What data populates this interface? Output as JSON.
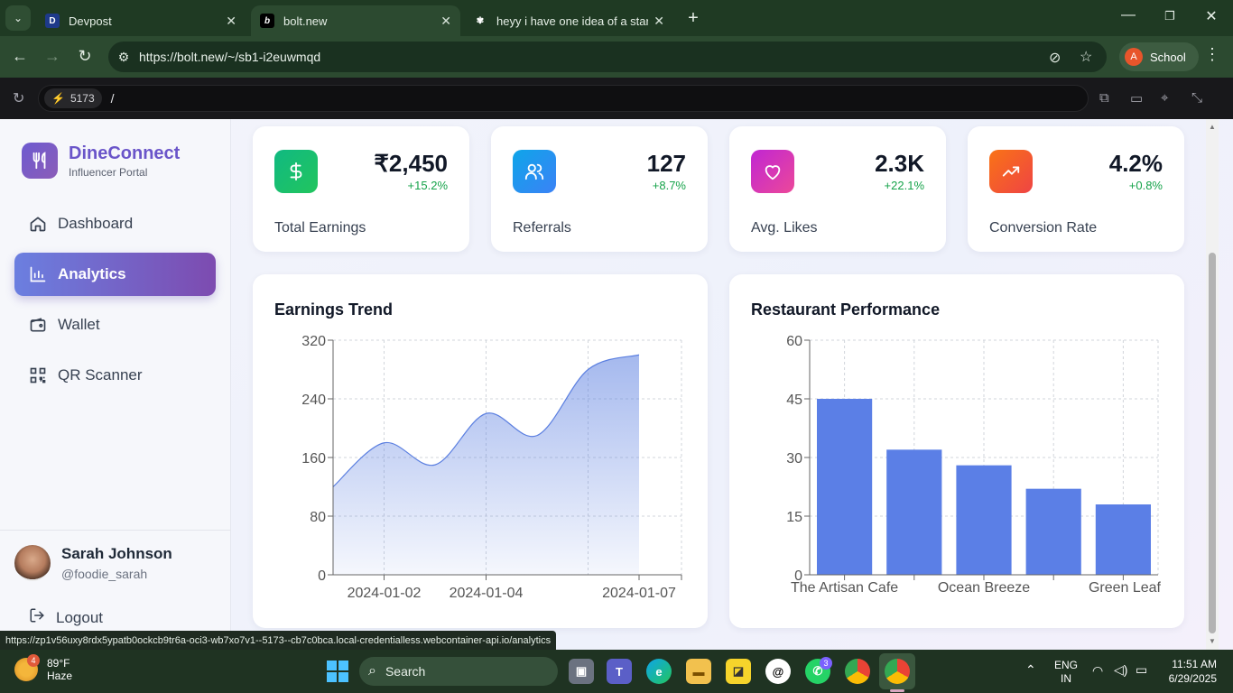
{
  "browser": {
    "tabs": [
      {
        "title": "Devpost",
        "favicon": "D"
      },
      {
        "title": "bolt.new",
        "favicon": "b"
      },
      {
        "title": "heyy i have one idea of a startu",
        "favicon": "✾"
      }
    ],
    "url": "https://bolt.new/~/sb1-i2euwmqd",
    "profile_label": "School",
    "profile_initial": "A"
  },
  "webcontainer": {
    "port": "5173",
    "path": "/"
  },
  "sidebar": {
    "brand_name": "DineConnect",
    "brand_sub": "Influencer Portal",
    "items": [
      {
        "label": "Dashboard",
        "icon": "home-icon"
      },
      {
        "label": "Analytics",
        "icon": "bar-chart-icon"
      },
      {
        "label": "Wallet",
        "icon": "wallet-icon"
      },
      {
        "label": "QR Scanner",
        "icon": "qr-icon"
      }
    ],
    "user_name": "Sarah Johnson",
    "user_handle": "@foodie_sarah",
    "logout_label": "Logout"
  },
  "stats": [
    {
      "value": "₹2,450",
      "change": "+15.2%",
      "label": "Total Earnings",
      "color": "#10b981"
    },
    {
      "value": "127",
      "change": "+8.7%",
      "label": "Referrals",
      "color": "#0ea5e9"
    },
    {
      "value": "2.3K",
      "change": "+22.1%",
      "label": "Avg. Likes",
      "color": "#d946ef"
    },
    {
      "value": "4.2%",
      "change": "+0.8%",
      "label": "Conversion Rate",
      "color": "#f97316"
    }
  ],
  "earnings_title": "Earnings Trend",
  "performance_title": "Restaurant Performance",
  "chart_data": [
    {
      "type": "area",
      "title": "Earnings Trend",
      "x": [
        "2024-01-01",
        "2024-01-02",
        "2024-01-03",
        "2024-01-04",
        "2024-01-05",
        "2024-01-06",
        "2024-01-07"
      ],
      "x_tick_labels": [
        "2024-01-02",
        "2024-01-04",
        "2024-01-07"
      ],
      "values": [
        120,
        180,
        150,
        220,
        190,
        280,
        300
      ],
      "ylim": [
        0,
        320
      ],
      "yticks": [
        0,
        80,
        160,
        240,
        320
      ],
      "grid": true,
      "color": "#5b7fe0"
    },
    {
      "type": "bar",
      "title": "Restaurant Performance",
      "categories": [
        "The Artisan Cafe",
        "",
        "Ocean Breeze",
        "",
        "Green Leaf"
      ],
      "values": [
        45,
        32,
        28,
        22,
        18
      ],
      "ylim": [
        0,
        60
      ],
      "yticks": [
        0,
        15,
        30,
        45,
        60
      ],
      "grid": true,
      "color": "#5b7fe6"
    }
  ],
  "status_link": "https://zp1v56uxy8rdx5ypatb0ockcb9tr6a-oci3-wb7xo7v1--5173--cb7c0bca.local-credentialless.webcontainer-api.io/analytics",
  "taskbar": {
    "temp": "89°F",
    "condition": "Haze",
    "weather_badge": "4",
    "search_label": "Search",
    "whatsapp_badge": "3",
    "lang": "ENG",
    "region": "IN",
    "time": "11:51 AM",
    "date": "6/29/2025"
  }
}
